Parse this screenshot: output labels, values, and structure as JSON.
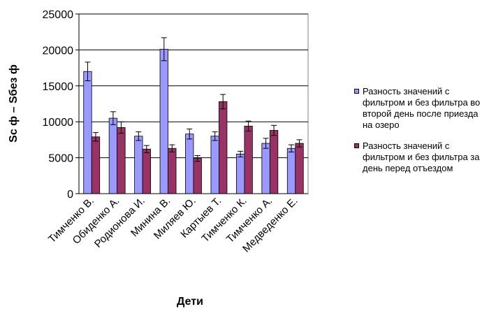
{
  "chart_data": {
    "type": "bar",
    "xlabel": "Дети",
    "ylabel": "Sс ф – Sбез ф",
    "ylim": [
      0,
      25000
    ],
    "yticks": [
      0,
      5000,
      10000,
      15000,
      20000,
      25000
    ],
    "ytick_labels": [
      "0",
      "5000",
      "10000",
      "15000",
      "20000",
      "25000"
    ],
    "grid": true,
    "error_bars": true,
    "legend_position": "right",
    "categories": [
      "Тимченко В.",
      "Обиденко А.",
      "Родионова И.",
      "Минина В.",
      "Миляев Ю.",
      "Картыев Т.",
      "Тимченко К.",
      "Тимченко А.",
      "Медведенко Е."
    ],
    "series": [
      {
        "name": "Разность значений с фильтром и без фильтра во второй день после приезда на озеро",
        "color": "#9999ff",
        "values": [
          17000,
          10500,
          8000,
          20100,
          8300,
          8000,
          5500,
          7000,
          6300
        ],
        "errors": [
          1300,
          900,
          600,
          1600,
          700,
          600,
          400,
          700,
          500
        ]
      },
      {
        "name": "Разность значений с фильтром и без фильтра за день перед отъездом",
        "color": "#993366",
        "values": [
          7900,
          9200,
          6200,
          6300,
          4900,
          12800,
          9400,
          8800,
          7000
        ],
        "errors": [
          600,
          800,
          500,
          500,
          400,
          1000,
          700,
          700,
          500
        ]
      }
    ]
  }
}
